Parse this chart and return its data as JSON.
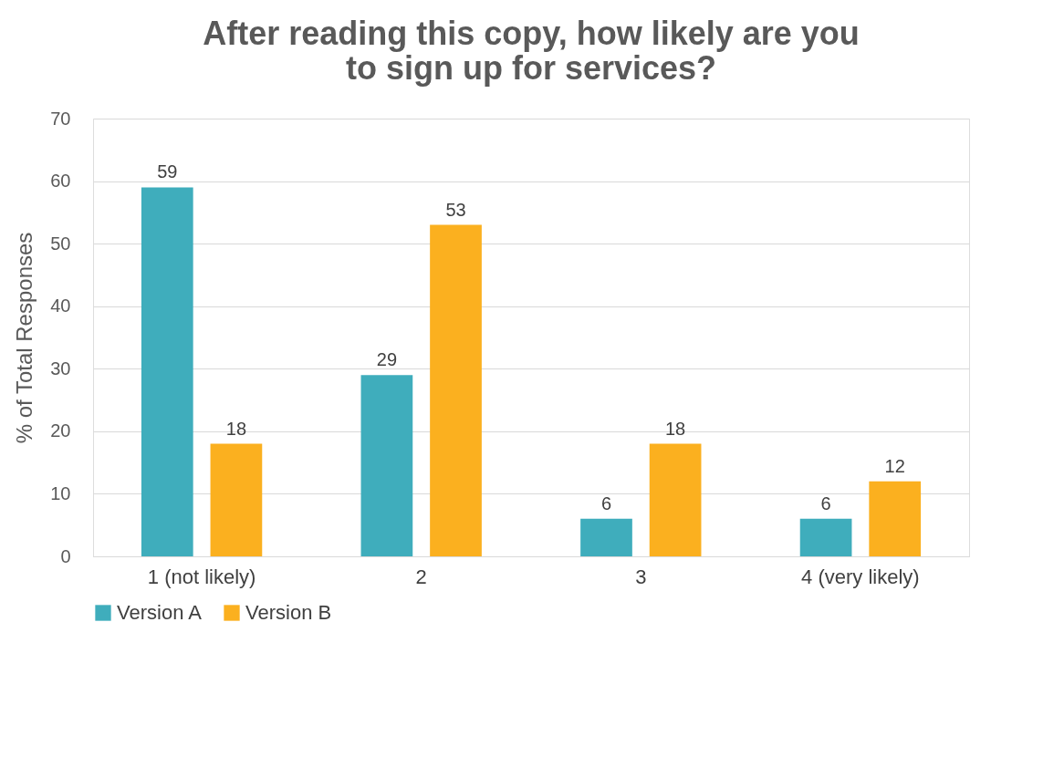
{
  "chart_data": {
    "type": "bar",
    "title": "After reading this copy, how likely are you to sign up for services?",
    "ylabel": "% of Total Responses",
    "categories": [
      "1 (not likely)",
      "2",
      "3",
      "4 (very likely)"
    ],
    "series": [
      {
        "name": "Version A",
        "color": "#3fadbc",
        "values": [
          59,
          29,
          6,
          6
        ]
      },
      {
        "name": "Version B",
        "color": "#fbb01f",
        "values": [
          18,
          53,
          18,
          12
        ]
      }
    ],
    "ylim": [
      0,
      70
    ],
    "yticks": [
      0,
      10,
      20,
      30,
      40,
      50,
      60,
      70
    ],
    "grid": "y",
    "legend": "bottom",
    "data_labels": true
  }
}
